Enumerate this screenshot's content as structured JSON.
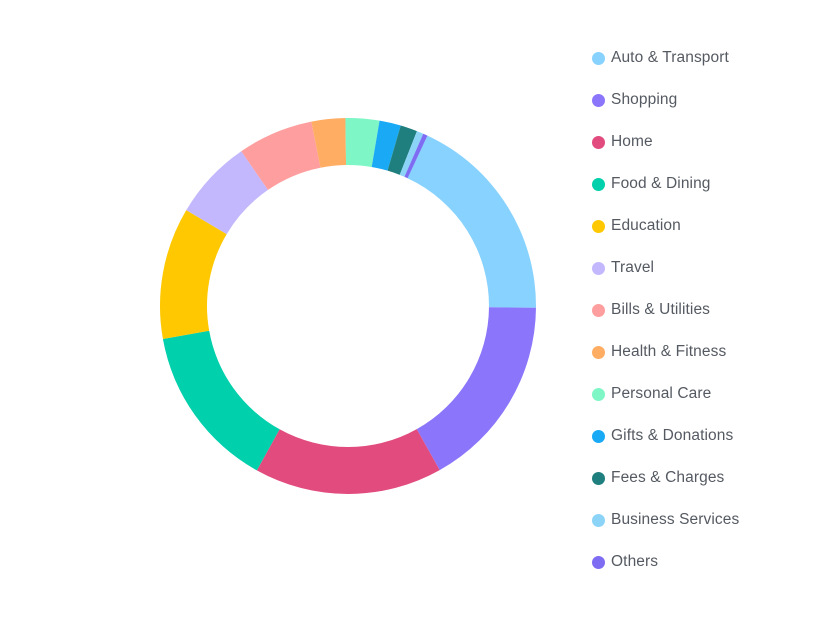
{
  "chart_data": {
    "type": "pie",
    "variant": "donut",
    "title": "",
    "legend_position": "right",
    "categories": [
      "Auto & Transport",
      "Shopping",
      "Home",
      "Food & Dining",
      "Education",
      "Travel",
      "Bills & Utilities",
      "Health & Fitness",
      "Personal Care",
      "Gifts & Donations",
      "Fees & Charges",
      "Business Services",
      "Others"
    ],
    "values": [
      18.8,
      17.3,
      16.7,
      14.6,
      11.7,
      7.1,
      6.7,
      3.0,
      3.0,
      1.9,
      1.5,
      0.6,
      0.4
    ],
    "colors": [
      "#87d2fe",
      "#8b76fb",
      "#e24b7e",
      "#00d0ab",
      "#ffc800",
      "#c3b8fd",
      "#ff9e9e",
      "#ffad63",
      "#7ef6c6",
      "#1aa9f5",
      "#1f7f7e",
      "#8bd4f7",
      "#7e6cf2"
    ],
    "start_angle_deg": 65
  }
}
